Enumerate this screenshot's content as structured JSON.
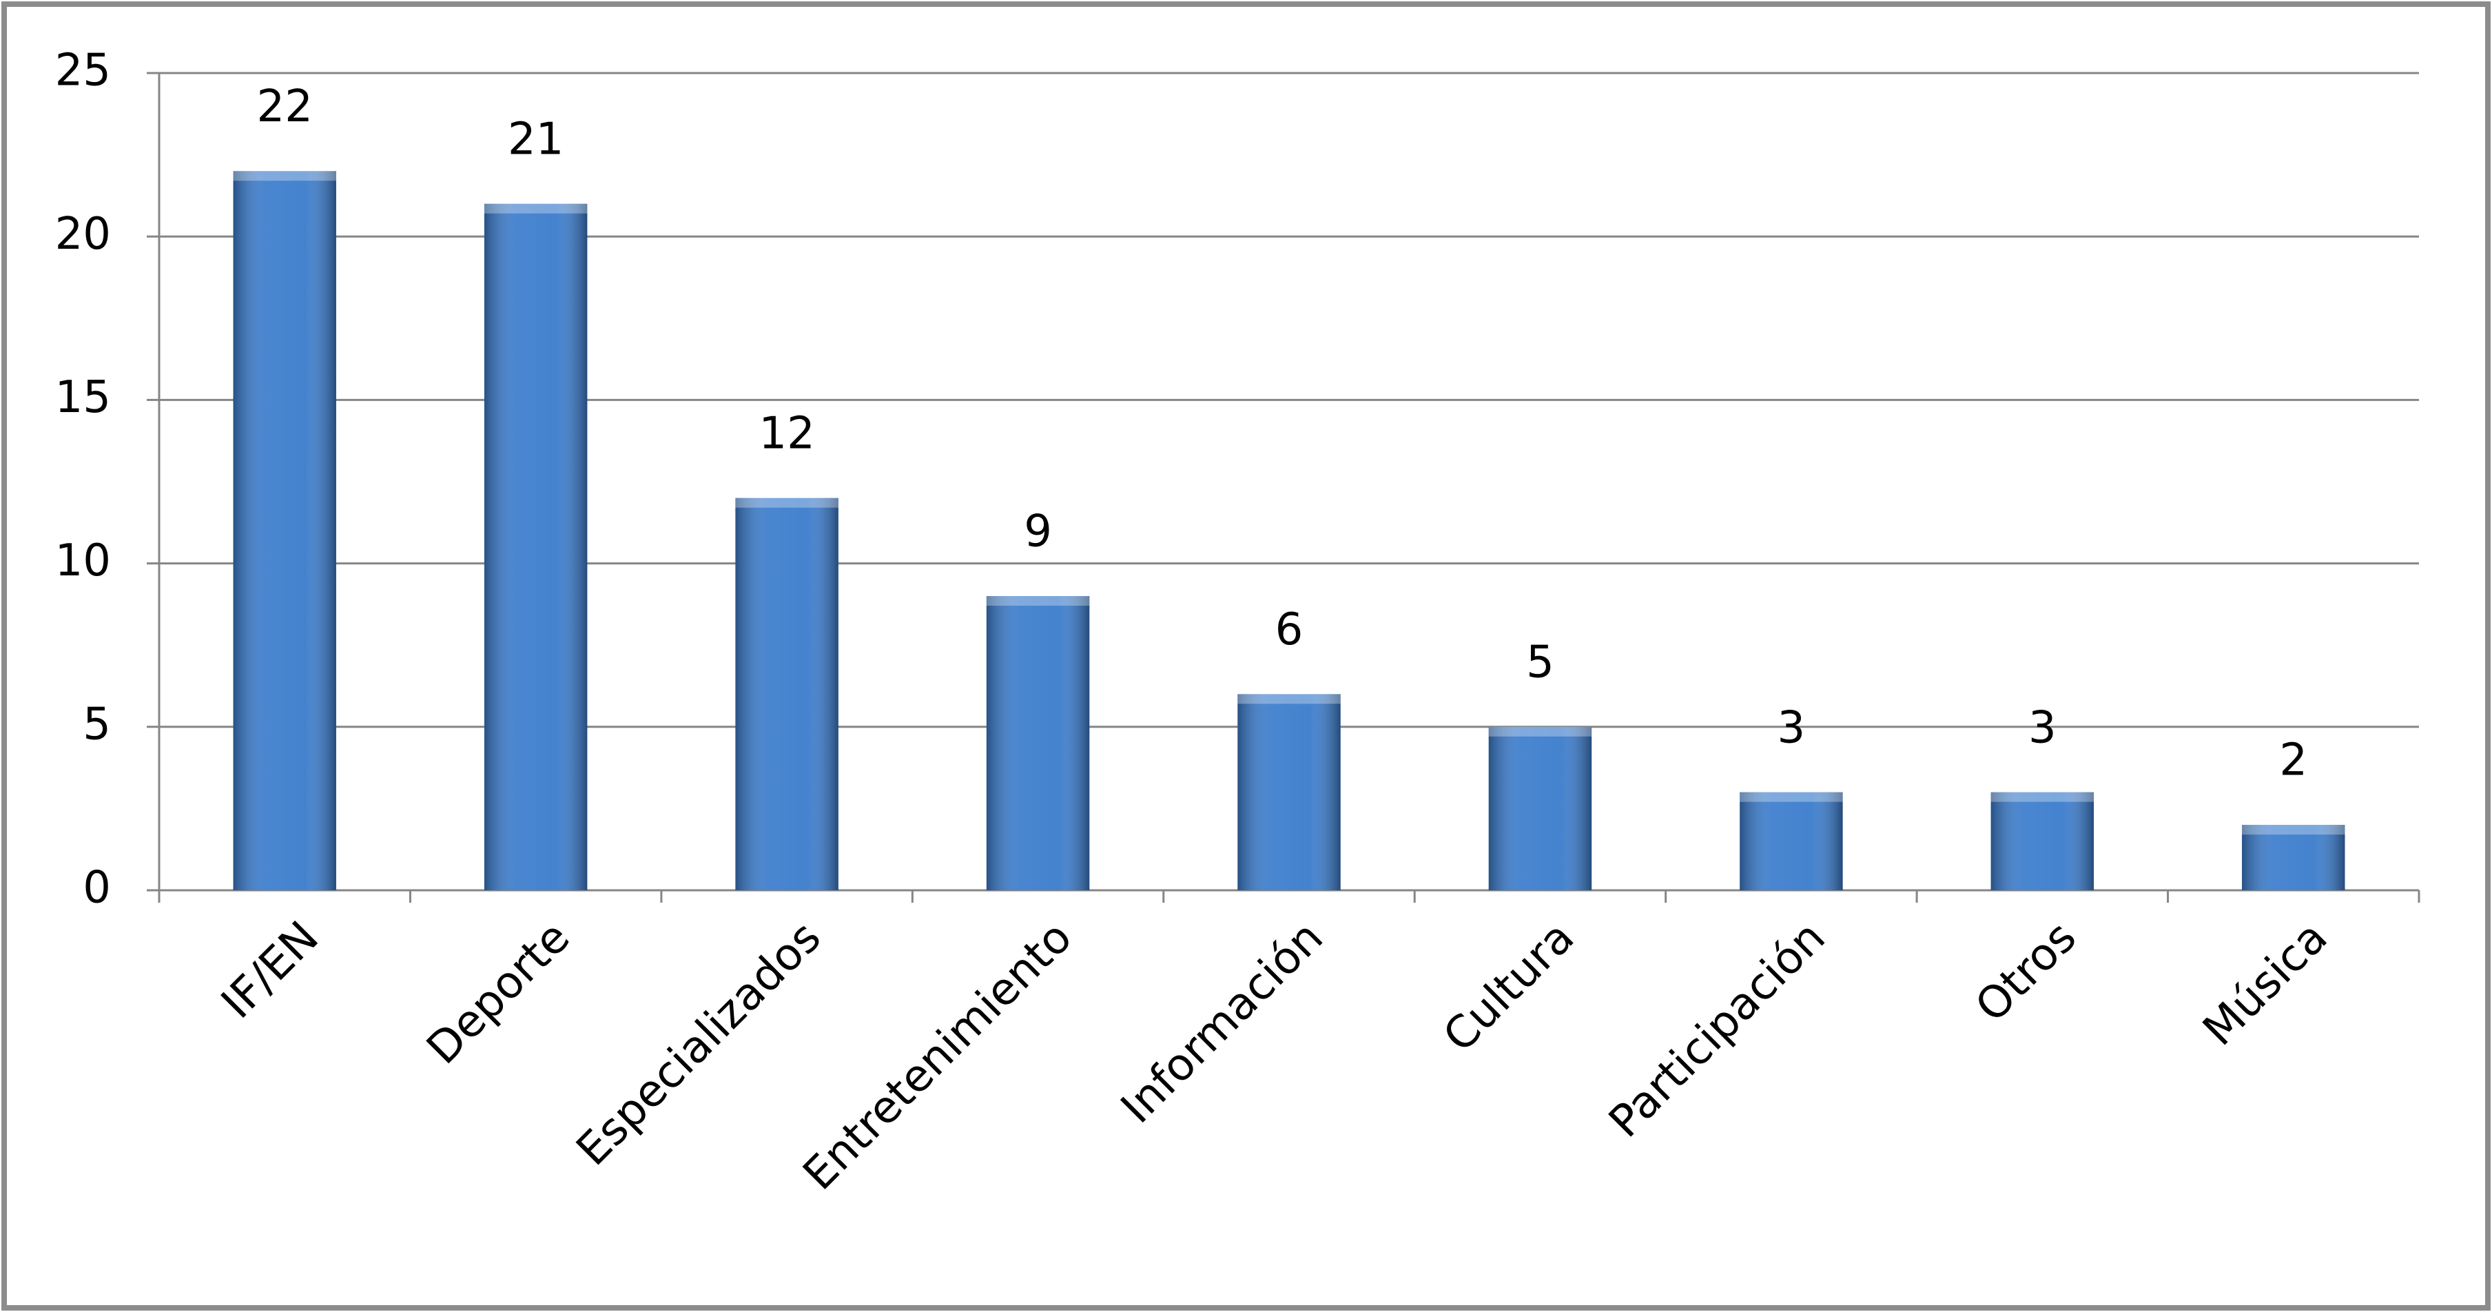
{
  "chart_data": {
    "type": "bar",
    "categories": [
      "IF/EN",
      "Deporte",
      "Especializados",
      "Entretenimiento",
      "Información",
      "Cultura",
      "Participación",
      "Otros",
      "Música"
    ],
    "values": [
      22,
      21,
      12,
      9,
      6,
      5,
      3,
      3,
      2
    ],
    "color": "#3b7ccc",
    "ylim": [
      0,
      25
    ],
    "yticks": [
      0,
      5,
      10,
      15,
      20,
      25
    ],
    "grid": true
  }
}
